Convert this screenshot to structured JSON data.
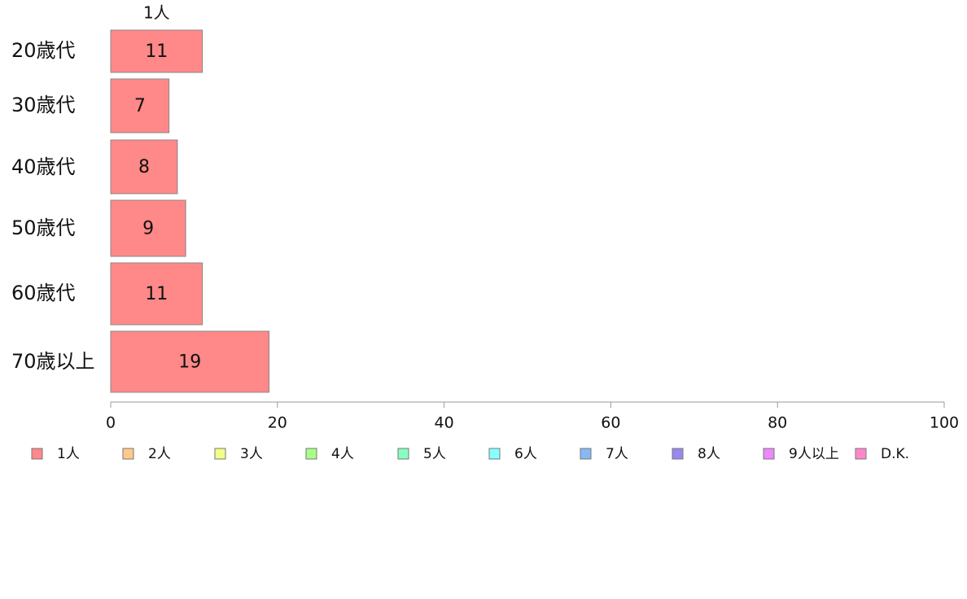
{
  "chart_data": {
    "type": "bar",
    "orientation": "horizontal",
    "stacked": true,
    "categories": [
      "20歳代",
      "30歳代",
      "40歳代",
      "50歳代",
      "60歳代",
      "70歳以上"
    ],
    "series": [
      {
        "name": "1人",
        "color": "#ff8888",
        "values": [
          11,
          7,
          8,
          9,
          11,
          19
        ]
      }
    ],
    "series_label_top": "1人",
    "xlim": [
      0,
      100
    ],
    "xticks": [
      0,
      20,
      40,
      60,
      80,
      100
    ],
    "grid": false,
    "legend_position": "bottom",
    "legend": [
      {
        "label": "1人",
        "color": "#ff8888"
      },
      {
        "label": "2人",
        "color": "#ffc98a"
      },
      {
        "label": "3人",
        "color": "#f2ff88"
      },
      {
        "label": "4人",
        "color": "#a8ff88"
      },
      {
        "label": "5人",
        "color": "#88ffc0"
      },
      {
        "label": "6人",
        "color": "#88ffff"
      },
      {
        "label": "7人",
        "color": "#88b8f4"
      },
      {
        "label": "8人",
        "color": "#9988ee"
      },
      {
        "label": "9人以上",
        "color": "#ee88ff"
      },
      {
        "label": "D.K.",
        "color": "#ff88cc"
      }
    ]
  }
}
